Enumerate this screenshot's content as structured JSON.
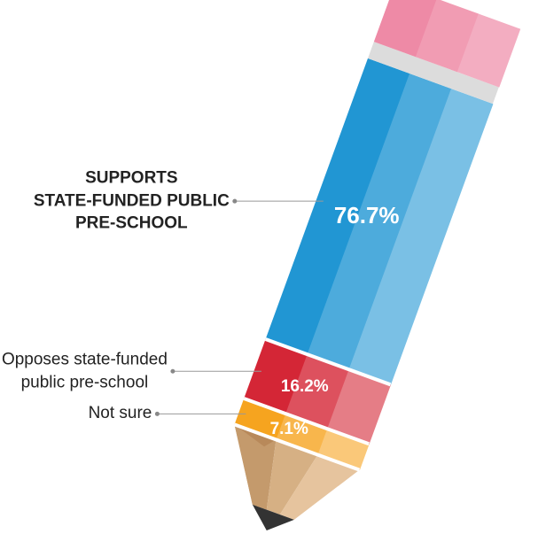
{
  "chart_data": {
    "type": "pencil",
    "series": [
      {
        "name": "SUPPORTS\nSTATE-FUNDED PUBLIC\nPRE-SCHOOL",
        "color": "#2196d3",
        "values": [
          76.7
        ],
        "value_labels": [
          "76.7%"
        ]
      },
      {
        "name": "Opposes state-funded\npublic pre-school",
        "color": "#d42636",
        "values": [
          16.2
        ],
        "value_labels": [
          "16.2%"
        ]
      },
      {
        "name": "Not sure",
        "color": "#f6a41f",
        "values": [
          7.1
        ],
        "value_labels": [
          "7.1%"
        ]
      }
    ]
  }
}
